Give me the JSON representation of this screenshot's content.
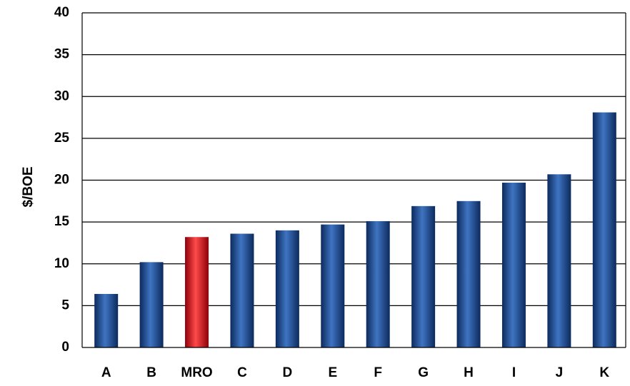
{
  "chart_data": {
    "type": "bar",
    "title": "",
    "xlabel": "",
    "ylabel": "$/BOE",
    "ylim": [
      0,
      40
    ],
    "yticks": [
      0,
      5,
      10,
      15,
      20,
      25,
      30,
      35,
      40
    ],
    "grid": true,
    "legend": "none",
    "categories": [
      "A",
      "B",
      "MRO",
      "C",
      "D",
      "E",
      "F",
      "G",
      "H",
      "I",
      "J",
      "K"
    ],
    "values": [
      6.4,
      10.2,
      13.2,
      13.6,
      14.0,
      14.7,
      15.1,
      16.9,
      17.5,
      19.7,
      20.7,
      28.1
    ],
    "highlight_category": "MRO",
    "colors": {
      "bar": "#1f4e96",
      "bar_dark": "#0b2a5c",
      "bar_light": "#3f74c2",
      "highlight": "#e0141e",
      "highlight_dark": "#8c0008",
      "highlight_light": "#ff4a4a",
      "gridline": "#000000",
      "text": "#000000"
    }
  }
}
